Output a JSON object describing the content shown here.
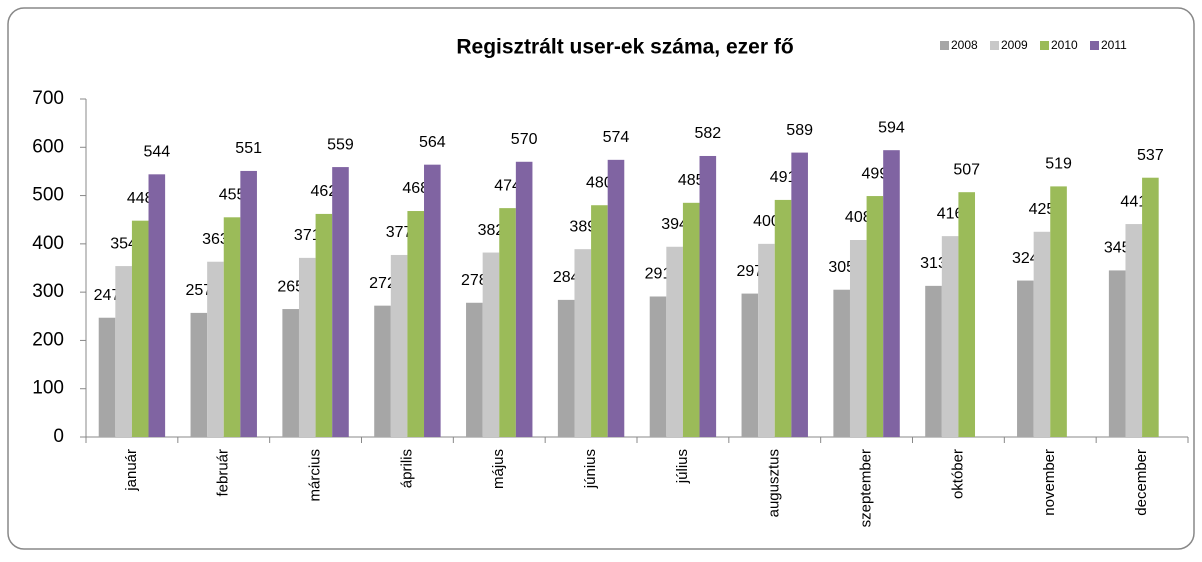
{
  "chart_data": {
    "type": "bar",
    "title": "Regisztrált user-ek száma, ezer fő",
    "categories": [
      "január",
      "február",
      "március",
      "április",
      "május",
      "június",
      "július",
      "augusztus",
      "szeptember",
      "október",
      "november",
      "december"
    ],
    "series": [
      {
        "name": "2008",
        "color": "#a6a6a6",
        "values": [
          247,
          257,
          265,
          272,
          278,
          284,
          291,
          297,
          305,
          313,
          324,
          345
        ]
      },
      {
        "name": "2009",
        "color": "#c8c8c8",
        "values": [
          354,
          363,
          371,
          377,
          382,
          389,
          394,
          400,
          408,
          416,
          425,
          441
        ]
      },
      {
        "name": "2010",
        "color": "#9bbb59",
        "values": [
          448,
          455,
          462,
          468,
          474,
          480,
          485,
          491,
          499,
          507,
          519,
          537
        ]
      },
      {
        "name": "2011",
        "color": "#8064a2",
        "values": [
          544,
          551,
          559,
          564,
          570,
          574,
          582,
          589,
          594,
          null,
          null,
          null
        ]
      }
    ],
    "ylim": [
      0,
      700
    ],
    "yticks": [
      0,
      100,
      200,
      300,
      400,
      500,
      600,
      700
    ],
    "legend": "top-right"
  }
}
